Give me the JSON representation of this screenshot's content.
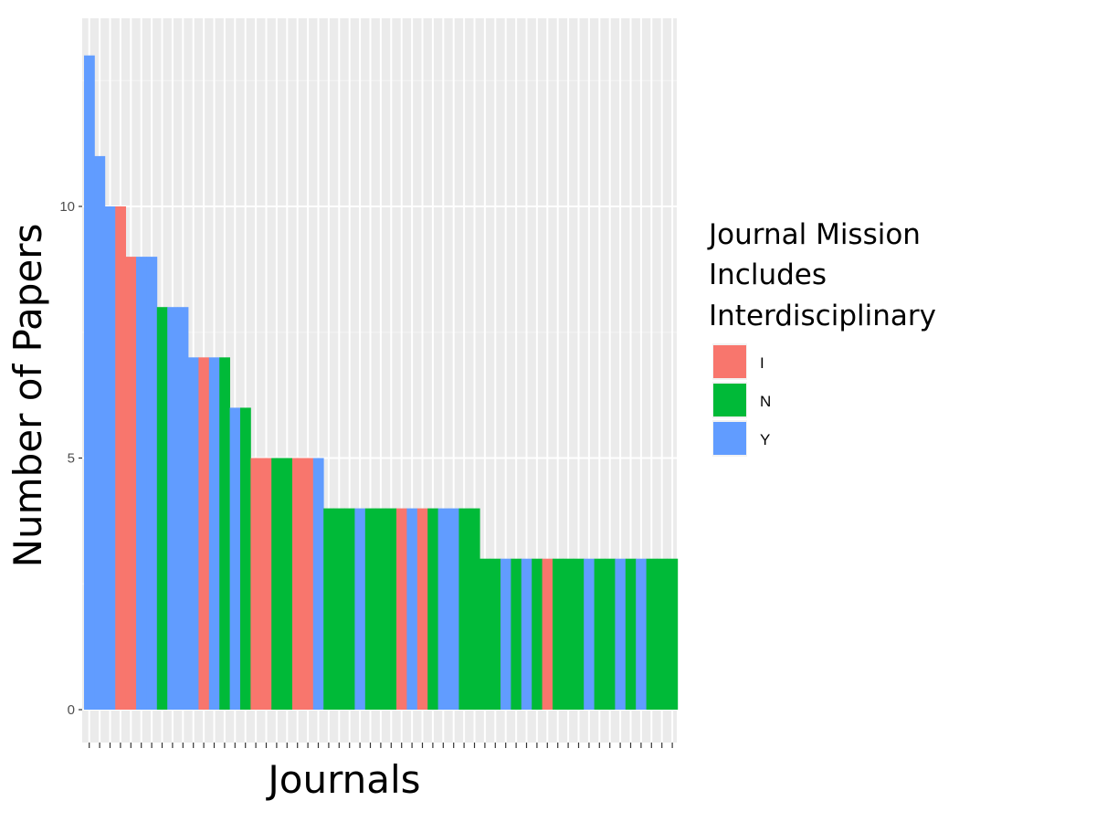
{
  "chart_data": {
    "type": "bar",
    "xlabel": "Journals",
    "ylabel": "Number of Papers",
    "ylim": [
      0,
      13.6
    ],
    "y_ticks": [
      0,
      5,
      10
    ],
    "grid": true,
    "legend": {
      "title_lines": [
        "Journal Mission",
        "Includes",
        "Interdisciplinary"
      ],
      "placement": "right",
      "entries": [
        {
          "key": "I",
          "label": "I",
          "color": "#F8766D"
        },
        {
          "key": "N",
          "label": "N",
          "color": "#00BA38"
        },
        {
          "key": "Y",
          "label": "Y",
          "color": "#619CFF"
        }
      ]
    },
    "values": [
      13,
      11,
      10,
      10,
      9,
      9,
      9,
      8,
      8,
      8,
      7,
      7,
      7,
      7,
      6,
      6,
      5,
      5,
      5,
      5,
      5,
      5,
      5,
      4,
      4,
      4,
      4,
      4,
      4,
      4,
      4,
      4,
      4,
      4,
      4,
      4,
      4,
      4,
      3,
      3,
      3,
      3,
      3,
      3,
      3,
      3,
      3,
      3,
      3,
      3,
      3,
      3,
      3,
      3,
      3,
      3,
      3
    ],
    "groups": [
      "Y",
      "Y",
      "Y",
      "I",
      "I",
      "Y",
      "Y",
      "N",
      "Y",
      "Y",
      "Y",
      "I",
      "Y",
      "N",
      "Y",
      "N",
      "I",
      "I",
      "N",
      "N",
      "I",
      "I",
      "Y",
      "N",
      "N",
      "N",
      "Y",
      "N",
      "N",
      "N",
      "I",
      "Y",
      "I",
      "N",
      "Y",
      "Y",
      "N",
      "N",
      "N",
      "N",
      "Y",
      "N",
      "Y",
      "N",
      "I",
      "N",
      "N",
      "N",
      "Y",
      "N",
      "N",
      "Y",
      "N",
      "Y",
      "N",
      "N",
      "N"
    ]
  }
}
